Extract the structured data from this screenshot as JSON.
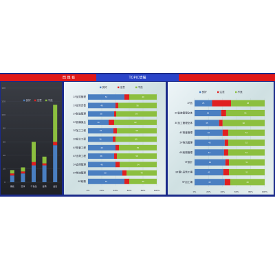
{
  "header": {
    "left_title": "問 題 板",
    "center_title": "TOPIC情報"
  },
  "chart_data": [
    {
      "type": "stacked_bar",
      "categories": [
        "事故",
        "苦情",
        "不良品",
        "設備",
        "品質"
      ],
      "series": [
        {
          "name": "良好",
          "color": "#4a7fc1",
          "values": [
            10,
            13,
            25,
            25,
            55
          ]
        },
        {
          "name": "注意",
          "color": "#e02020",
          "values": [
            3,
            3,
            5,
            3,
            5
          ]
        },
        {
          "name": "不良",
          "color": "#8cbf3f",
          "values": [
            5,
            6,
            30,
            10,
            55
          ]
        }
      ],
      "ylim": [
        0,
        140
      ],
      "yticks": [
        0,
        20,
        40,
        60,
        80,
        100,
        120,
        140
      ]
    },
    {
      "type": "stacked_hbar",
      "categories": [
        "1F品質管理",
        "1F品質改善",
        "2F製造管理",
        "2F設備保全",
        "3F加工工程",
        "3F組立工程",
        "4F検査工程",
        "4F出荷工程",
        "5F倉庫管理",
        "5F物流管理",
        "6F総務"
      ],
      "series": [
        {
          "name": "良好",
          "color": "#4a7fc1",
          "values": [
            53,
            40,
            38,
            30,
            37,
            36,
            40,
            38,
            40,
            50,
            53
          ]
        },
        {
          "name": "注意",
          "color": "#e02020",
          "values": [
            7,
            4,
            3,
            8,
            5,
            4,
            5,
            4,
            6,
            6,
            7
          ]
        },
        {
          "name": "不良",
          "color": "#8cbf3f",
          "values": [
            40,
            56,
            59,
            62,
            58,
            60,
            55,
            58,
            54,
            44,
            40
          ]
        }
      ],
      "xlim": [
        0,
        100
      ],
      "xticks": [
        {
          "value": 0,
          "label": "0%"
        },
        {
          "value": 20,
          "label": "20%"
        },
        {
          "value": 40,
          "label": "40%"
        },
        {
          "value": 60,
          "label": "60%"
        },
        {
          "value": 80,
          "label": "80%"
        },
        {
          "value": 100,
          "label": "100%"
        }
      ]
    },
    {
      "type": "stacked_hbar",
      "categories": [
        "1F品",
        "2F製造管理全体",
        "3F加工管理全体",
        "4F検査管理",
        "5F物流管理",
        "6F総務管理",
        "7F設計",
        "8F第1品質工場",
        "9F加工場"
      ],
      "series": [
        {
          "name": "良好",
          "color": "#4a7fc1",
          "values": [
            25,
            38,
            35,
            40,
            43,
            42,
            44,
            41,
            43
          ]
        },
        {
          "name": "注意",
          "color": "#e02020",
          "values": [
            27,
            7,
            5,
            8,
            5,
            6,
            5,
            8,
            8
          ]
        },
        {
          "name": "不良",
          "color": "#8cbf3f",
          "values": [
            48,
            55,
            60,
            52,
            52,
            52,
            51,
            51,
            49
          ]
        }
      ],
      "xlim": [
        0,
        100
      ],
      "xticks": [
        {
          "value": 0,
          "label": "0%"
        },
        {
          "value": 20,
          "label": "20%"
        },
        {
          "value": 40,
          "label": "40%"
        },
        {
          "value": 60,
          "label": "60%"
        },
        {
          "value": 80,
          "label": "80%"
        },
        {
          "value": 100,
          "label": "100%"
        }
      ]
    }
  ]
}
